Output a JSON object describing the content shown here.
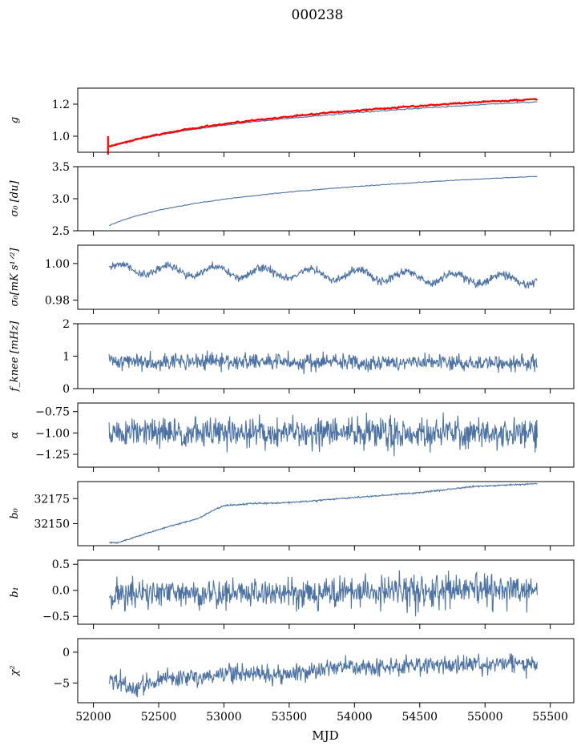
{
  "figure": {
    "title": "000238"
  },
  "colors": {
    "series": "#4c72a4",
    "fit": "#ff0000",
    "axis": "#000000"
  },
  "chart_data": [
    {
      "type": "line",
      "ylabel": "g",
      "ylim": [
        0.9,
        1.3
      ],
      "yticks": [
        1.0,
        1.2
      ],
      "ytick_labels": [
        "1.0",
        "1.2"
      ],
      "series": [
        {
          "model": "log",
          "from": 0.935,
          "to": 1.215,
          "k": 500,
          "noise": 0.003,
          "seed": 11
        },
        {
          "model": "log",
          "from": 0.935,
          "to": 1.232,
          "k": 500,
          "noise": 0.004,
          "seed": 12,
          "color": "fit",
          "width": 2.2,
          "errorbars": true
        }
      ]
    },
    {
      "type": "line",
      "ylabel": "σ₀ [du]",
      "ylim": [
        2.5,
        3.5
      ],
      "yticks": [
        2.5,
        3.0,
        3.5
      ],
      "ytick_labels": [
        "2.5",
        "3.0",
        "3.5"
      ],
      "series": [
        {
          "model": "log",
          "from": 2.58,
          "to": 3.35,
          "k": 900,
          "noise": 0.005,
          "seed": 21
        }
      ]
    },
    {
      "type": "line",
      "ylabel": "σ₀[mK s¹ᐟ²]",
      "ylim": [
        0.975,
        1.01
      ],
      "yticks": [
        0.98,
        1.0
      ],
      "ytick_labels": [
        "0.98",
        "1.00"
      ],
      "series": [
        {
          "model": "wave",
          "from": 0.997,
          "to": 0.991,
          "amp": 0.0028,
          "period": 365,
          "noise": 0.0011,
          "seed": 31
        }
      ]
    },
    {
      "type": "line",
      "ylabel": "f_knee [mHz]",
      "ylim": [
        0,
        2
      ],
      "yticks": [
        0,
        1,
        2
      ],
      "ytick_labels": [
        "0",
        "1",
        "2"
      ],
      "series": [
        {
          "model": "noise",
          "from": 0.85,
          "to": 0.78,
          "noise": 0.13,
          "seed": 41
        }
      ]
    },
    {
      "type": "line",
      "ylabel": "α",
      "ylim": [
        -1.4,
        -0.65
      ],
      "yticks": [
        -1.25,
        -1.0,
        -0.75
      ],
      "ytick_labels": [
        "−1.25",
        "−1.00",
        "−0.75"
      ],
      "series": [
        {
          "model": "noise",
          "from": -1.0,
          "to": -1.0,
          "noise": 0.09,
          "seed": 51
        }
      ]
    },
    {
      "type": "line",
      "ylabel": "b₀",
      "ylim": [
        32128,
        32192
      ],
      "yticks": [
        32150,
        32175
      ],
      "ytick_labels": [
        "32150",
        "32175"
      ],
      "series": [
        {
          "model": "pts",
          "points": [
            [
              52120,
              32131
            ],
            [
              52190,
              32131
            ],
            [
              52400,
              32140
            ],
            [
              52600,
              32148
            ],
            [
              52800,
              32155
            ],
            [
              52900,
              32162
            ],
            [
              53000,
              32168
            ],
            [
              53200,
              32170
            ],
            [
              53500,
              32171
            ],
            [
              54000,
              32176
            ],
            [
              54500,
              32181
            ],
            [
              54900,
              32187
            ],
            [
              55400,
              32190
            ]
          ],
          "noise": 0.35,
          "seed": 61
        }
      ]
    },
    {
      "type": "line",
      "ylabel": "b₁",
      "ylim": [
        -0.65,
        0.58
      ],
      "yticks": [
        -0.5,
        0.0,
        0.5
      ],
      "ytick_labels": [
        "−0.5",
        "0.0",
        "0.5"
      ],
      "series": [
        {
          "model": "noise",
          "from": -0.08,
          "to": 0.0,
          "noise": 0.15,
          "seed": 71
        }
      ]
    },
    {
      "type": "line",
      "ylabel": "χ²",
      "ylim": [
        -8.2,
        2.2
      ],
      "yticks": [
        -5,
        0
      ],
      "ytick_labels": [
        "−5",
        "0"
      ],
      "series": [
        {
          "model": "pts",
          "points": [
            [
              52120,
              -4.3
            ],
            [
              52300,
              -6.0
            ],
            [
              52500,
              -4.6
            ],
            [
              53000,
              -3.4
            ],
            [
              53500,
              -3.4
            ],
            [
              54000,
              -2.3
            ],
            [
              54500,
              -2.1
            ],
            [
              55000,
              -1.9
            ],
            [
              55400,
              -1.8
            ]
          ],
          "noise": 0.75,
          "seed": 81
        }
      ]
    }
  ],
  "x_axis": {
    "xlabel": "MJD",
    "xlim": [
      51880,
      55680
    ],
    "data_range": [
      52120,
      55400
    ],
    "ticks": [
      52000,
      52500,
      53000,
      53500,
      54000,
      54500,
      55000,
      55500
    ],
    "tick_labels": [
      "52000",
      "52500",
      "53000",
      "53500",
      "54000",
      "54500",
      "55000",
      "55500"
    ]
  }
}
